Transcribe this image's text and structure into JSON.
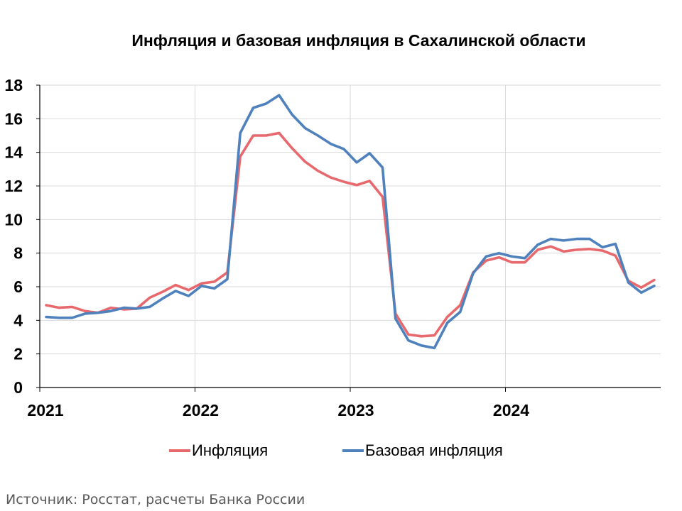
{
  "chart_data": {
    "type": "line",
    "title": "Инфляция и базовая инфляция в Сахалинской области",
    "ylim": [
      0,
      18
    ],
    "yticks": [
      0,
      2,
      4,
      6,
      8,
      10,
      12,
      14,
      16,
      18
    ],
    "xticks": [
      "2021",
      "2022",
      "2023",
      "2024"
    ],
    "x": [
      "2021-01",
      "2021-02",
      "2021-03",
      "2021-04",
      "2021-05",
      "2021-06",
      "2021-07",
      "2021-08",
      "2021-09",
      "2021-10",
      "2021-11",
      "2021-12",
      "2022-01",
      "2022-02",
      "2022-03",
      "2022-04",
      "2022-05",
      "2022-06",
      "2022-07",
      "2022-08",
      "2022-09",
      "2022-10",
      "2022-11",
      "2022-12",
      "2023-01",
      "2023-02",
      "2023-03",
      "2023-04",
      "2023-05",
      "2023-06",
      "2023-07",
      "2023-08",
      "2023-09",
      "2023-10",
      "2023-11",
      "2023-12",
      "2024-01",
      "2024-02",
      "2024-03",
      "2024-04",
      "2024-05",
      "2024-06",
      "2024-07",
      "2024-08",
      "2024-09",
      "2024-10",
      "2024-11",
      "2024-12"
    ],
    "grid": true,
    "legend_position": "bottom",
    "series": [
      {
        "name": "Инфляция",
        "color": "#e8696d",
        "values": [
          4.9,
          4.75,
          4.8,
          4.55,
          4.45,
          4.75,
          4.65,
          4.7,
          5.35,
          5.7,
          6.1,
          5.8,
          6.2,
          6.3,
          6.85,
          13.75,
          15.0,
          15.0,
          15.15,
          14.25,
          13.45,
          12.9,
          12.5,
          12.25,
          12.05,
          12.3,
          11.35,
          4.4,
          3.15,
          3.05,
          3.1,
          4.2,
          4.9,
          6.85,
          7.55,
          7.75,
          7.45,
          7.45,
          8.2,
          8.4,
          8.1,
          8.2,
          8.25,
          8.15,
          7.85,
          6.35,
          5.95,
          6.4
        ]
      },
      {
        "name": "Базовая инфляция",
        "color": "#4f81bd",
        "values": [
          4.2,
          4.15,
          4.15,
          4.4,
          4.45,
          4.55,
          4.75,
          4.7,
          4.8,
          5.3,
          5.75,
          5.45,
          6.05,
          5.9,
          6.45,
          15.15,
          16.65,
          16.9,
          17.4,
          16.25,
          15.45,
          15.0,
          14.5,
          14.2,
          13.4,
          13.95,
          13.1,
          4.1,
          2.8,
          2.5,
          2.35,
          3.85,
          4.5,
          6.8,
          7.8,
          8.0,
          7.8,
          7.7,
          8.5,
          8.85,
          8.75,
          8.85,
          8.85,
          8.35,
          8.55,
          6.25,
          5.65,
          6.05
        ]
      }
    ]
  },
  "legend": {
    "items": [
      {
        "label": "Инфляция",
        "color": "#e8696d"
      },
      {
        "label": "Базовая инфляция",
        "color": "#4f81bd"
      }
    ]
  },
  "source_note": "Источник: Росстат, расчеты Банка России"
}
